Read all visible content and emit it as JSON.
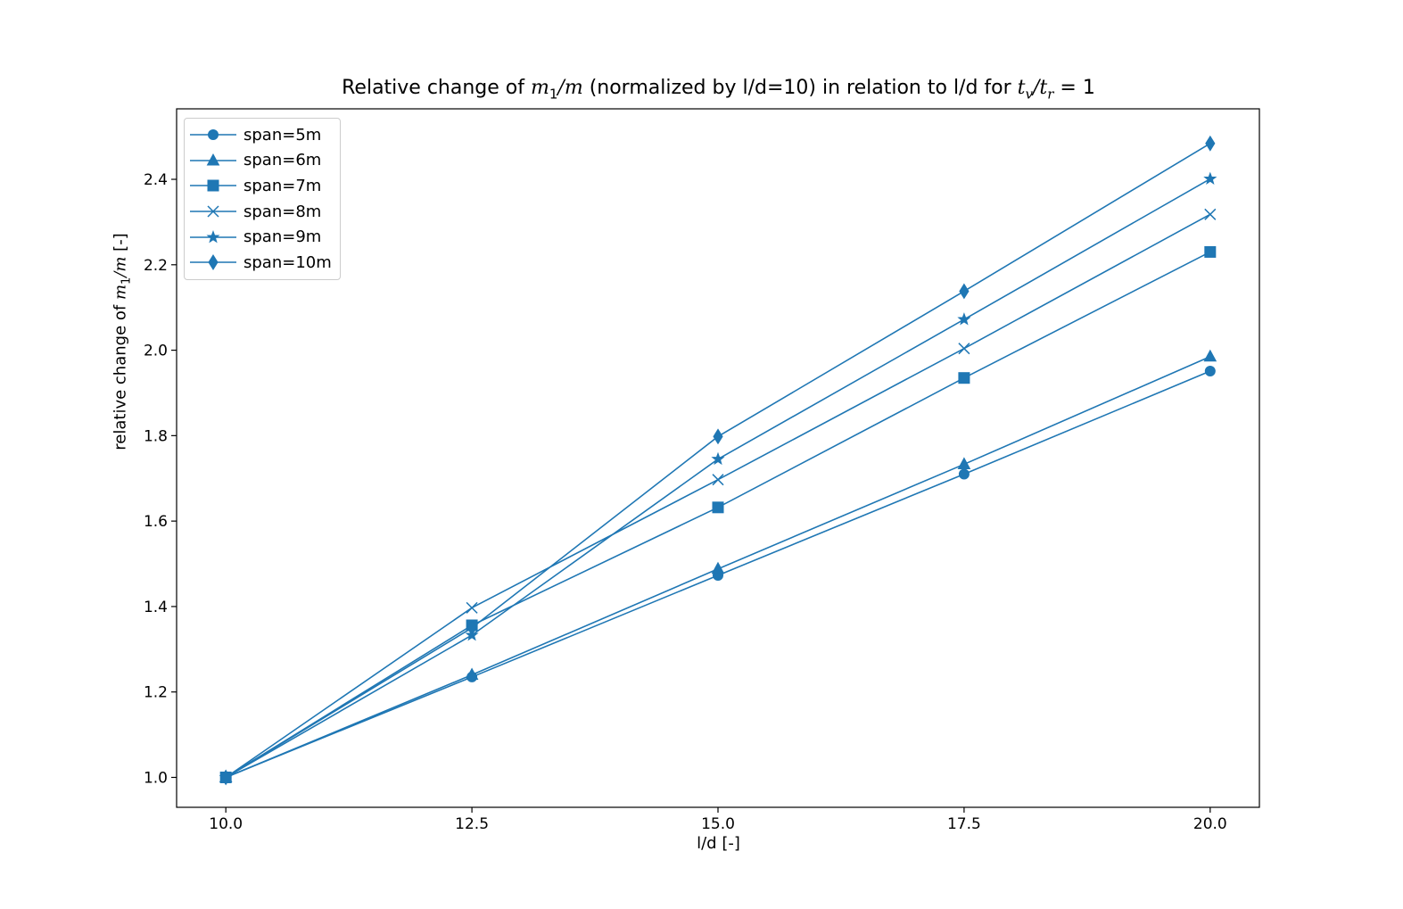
{
  "title_parts": {
    "pre": "Relative change of ",
    "m1": "m",
    "m1_sub": "1",
    "slash_m": "/m",
    "mid": " (normalized by l/d=10) in relation to l/d for ",
    "tv": "t",
    "tv_sub": "v",
    "slash_t": "/t",
    "tr_sub": "r",
    "post": " = 1"
  },
  "xlabel": "l/d [-]",
  "ylabel_parts": {
    "pre": "relative change of ",
    "m": "m",
    "sub": "1",
    "post_m": "/m",
    "post": " [-]"
  },
  "colors": {
    "line": "#1f77b4",
    "axis": "#000000",
    "legend_border": "#cccccc"
  },
  "chart_data": {
    "type": "line",
    "x": [
      10.0,
      12.5,
      15.0,
      17.5,
      20.0
    ],
    "xlim": [
      9.5,
      20.5
    ],
    "ylim": [
      0.93,
      2.565
    ],
    "xticks": [
      "10.0",
      "12.5",
      "15.0",
      "17.5",
      "20.0"
    ],
    "yticks": [
      "1.0",
      "1.2",
      "1.4",
      "1.6",
      "1.8",
      "2.0",
      "2.2",
      "2.4"
    ],
    "grid": false,
    "legend_position": "top-left",
    "series": [
      {
        "name": "span=5m",
        "marker": "circle",
        "values": [
          1.0,
          1.235,
          1.473,
          1.71,
          1.951
        ]
      },
      {
        "name": "span=6m",
        "marker": "triangle",
        "values": [
          1.0,
          1.24,
          1.488,
          1.733,
          1.985
        ]
      },
      {
        "name": "span=7m",
        "marker": "square",
        "values": [
          1.0,
          1.356,
          1.632,
          1.935,
          2.23
        ]
      },
      {
        "name": "span=8m",
        "marker": "x",
        "values": [
          1.0,
          1.397,
          1.697,
          2.004,
          2.318
        ]
      },
      {
        "name": "span=9m",
        "marker": "star",
        "values": [
          1.0,
          1.333,
          1.745,
          2.072,
          2.401
        ]
      },
      {
        "name": "span=10m",
        "marker": "diamond",
        "values": [
          1.0,
          1.35,
          1.798,
          2.138,
          2.484
        ]
      }
    ]
  }
}
